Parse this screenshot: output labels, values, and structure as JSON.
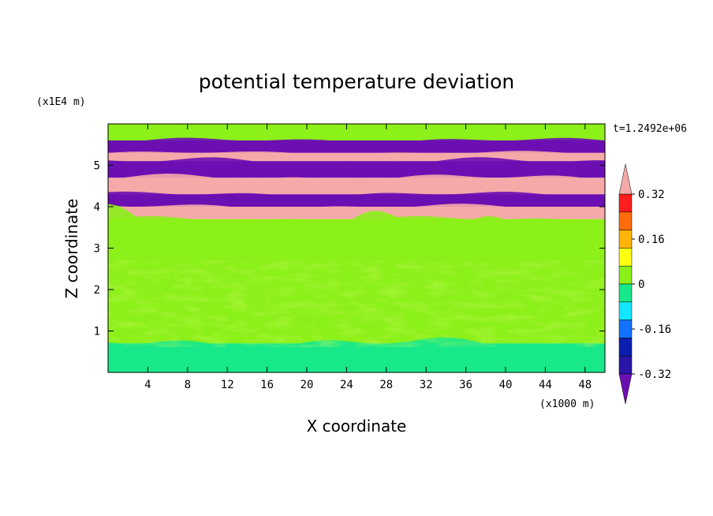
{
  "chart_data": {
    "type": "heatmap",
    "title": "potential temperature deviation",
    "xlabel": "X coordinate",
    "ylabel": "Z coordinate",
    "x_unit": "(x1000 m)",
    "y_unit": "(x1E4 m)",
    "time_label": "t=1.2492e+06",
    "xlim": [
      0,
      50
    ],
    "ylim": [
      0,
      6
    ],
    "x_ticks": [
      4,
      8,
      12,
      16,
      20,
      24,
      28,
      32,
      36,
      40,
      44,
      48
    ],
    "y_ticks": [
      1,
      2,
      3,
      4,
      5
    ],
    "colorbar": {
      "levels": [
        -0.4,
        -0.32,
        -0.24,
        -0.16,
        -0.08,
        0,
        0.08,
        0.16,
        0.24,
        0.32,
        0.4
      ],
      "tick_labels": [
        "0.32",
        "0.16",
        "0",
        "-0.16",
        "-0.32"
      ],
      "tick_values": [
        0.32,
        0.16,
        0,
        -0.16,
        -0.32
      ],
      "colors": [
        "#6b0fb3",
        "#2a16a6",
        "#0a1fb0",
        "#1272ff",
        "#13e6ff",
        "#17e88a",
        "#8cf019",
        "#ffff10",
        "#ffb40a",
        "#ff6b0a",
        "#ff1e1e",
        "#f6a9a9"
      ]
    },
    "bands": [
      {
        "z_from": 5.6,
        "z_to": 6.0,
        "value": 0.06
      },
      {
        "z_from": 5.3,
        "z_to": 5.6,
        "value": -0.45
      },
      {
        "z_from": 5.1,
        "z_to": 5.3,
        "value": 0.45
      },
      {
        "z_from": 4.7,
        "z_to": 5.1,
        "value": -0.45
      },
      {
        "z_from": 4.3,
        "z_to": 4.7,
        "value": 0.45
      },
      {
        "z_from": 4.0,
        "z_to": 4.3,
        "value": -0.45
      },
      {
        "z_from": 3.7,
        "z_to": 4.0,
        "value": 0.45
      },
      {
        "z_from": 3.4,
        "z_to": 3.7,
        "value": 0.0
      },
      {
        "z_from": 0.7,
        "z_to": 3.4,
        "value": 0.05
      },
      {
        "z_from": 0.0,
        "z_to": 0.7,
        "value": -0.05
      }
    ]
  }
}
